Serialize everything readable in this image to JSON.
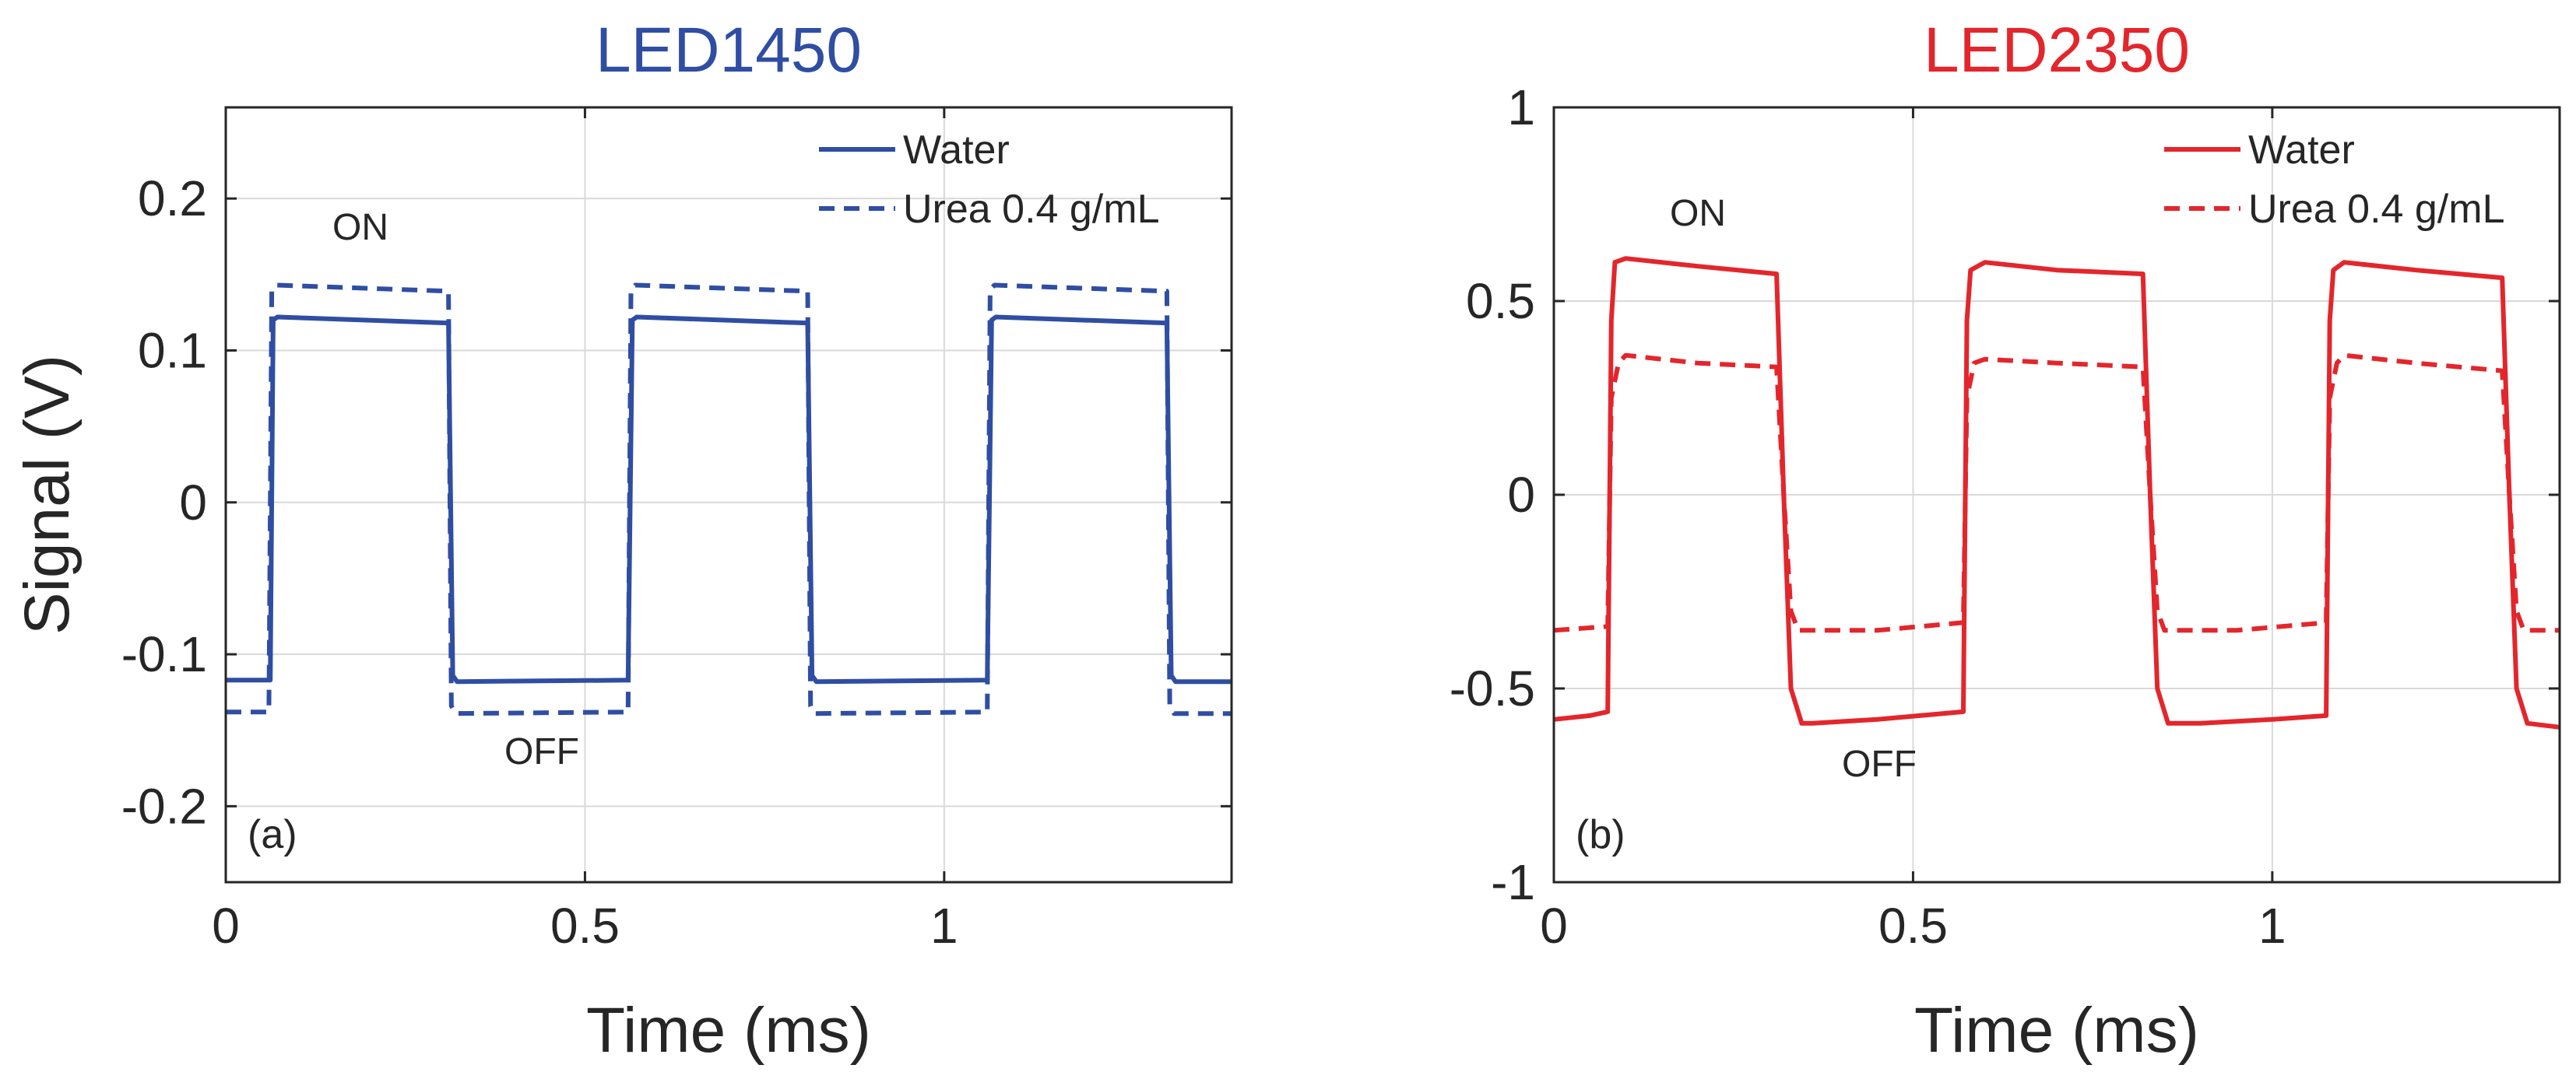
{
  "chart_data": [
    {
      "type": "line",
      "panel_label": "(a)",
      "title": "LED1450",
      "title_color": "#2f4ea3",
      "xlabel": "Time (ms)",
      "ylabel": "Signal (V)",
      "xlim": [
        0,
        1.4
      ],
      "ylim": [
        -0.25,
        0.26
      ],
      "xticks": [
        0,
        0.5,
        1
      ],
      "xtick_labels": [
        "0",
        "0.5",
        "1"
      ],
      "yticks": [
        -0.2,
        -0.1,
        0,
        0.1,
        0.2
      ],
      "ytick_labels": [
        "-0.2",
        "-0.1",
        "0",
        "0.1",
        "0.2"
      ],
      "grid": true,
      "legend_position": "top-right",
      "annotations": [
        {
          "text": "ON",
          "x": 0.19,
          "y": 0.175
        },
        {
          "text": "OFF",
          "x": 0.44,
          "y": -0.17
        }
      ],
      "series": [
        {
          "name": "Water",
          "style": "solid",
          "color": "#2f4ea3",
          "x": [
            0,
            0.062,
            0.066,
            0.072,
            0.31,
            0.316,
            0.322,
            0.56,
            0.566,
            0.572,
            0.81,
            0.816,
            0.822,
            1.06,
            1.066,
            1.072,
            1.31,
            1.316,
            1.322,
            1.4
          ],
          "y": [
            -0.117,
            -0.117,
            0.12,
            0.122,
            0.118,
            -0.114,
            -0.118,
            -0.117,
            0.12,
            0.122,
            0.118,
            -0.114,
            -0.118,
            -0.117,
            0.12,
            0.122,
            0.118,
            -0.114,
            -0.118,
            -0.118
          ]
        },
        {
          "name": "Urea 0.4 g/mL",
          "style": "dashed",
          "color": "#2f4ea3",
          "x": [
            0,
            0.06,
            0.064,
            0.07,
            0.31,
            0.314,
            0.32,
            0.56,
            0.564,
            0.57,
            0.81,
            0.814,
            0.82,
            1.06,
            1.064,
            1.07,
            1.31,
            1.314,
            1.32,
            1.4
          ],
          "y": [
            -0.138,
            -0.138,
            0.14,
            0.143,
            0.139,
            -0.134,
            -0.139,
            -0.138,
            0.14,
            0.143,
            0.139,
            -0.134,
            -0.139,
            -0.138,
            0.14,
            0.143,
            0.139,
            -0.134,
            -0.139,
            -0.139
          ]
        }
      ]
    },
    {
      "type": "line",
      "panel_label": "(b)",
      "title": "LED2350",
      "title_color": "#e3262c",
      "xlabel": "Time (ms)",
      "ylabel": "",
      "xlim": [
        0,
        1.4
      ],
      "ylim": [
        -1,
        1
      ],
      "xticks": [
        0,
        0.5,
        1
      ],
      "xtick_labels": [
        "0",
        "0.5",
        "1"
      ],
      "yticks": [
        -1,
        -0.5,
        0,
        0.5,
        1
      ],
      "ytick_labels": [
        "-1",
        "-0.5",
        "0",
        "0.5",
        "1"
      ],
      "grid": true,
      "legend_position": "top-right",
      "annotations": [
        {
          "text": "ON",
          "x": 0.2,
          "y": 0.72
        },
        {
          "text": "OFF",
          "x": 0.47,
          "y": -0.72
        }
      ],
      "series": [
        {
          "name": "Water",
          "style": "solid",
          "color": "#e3262c",
          "x": [
            0,
            0.05,
            0.075,
            0.08,
            0.085,
            0.1,
            0.2,
            0.31,
            0.32,
            0.33,
            0.345,
            0.36,
            0.45,
            0.57,
            0.575,
            0.58,
            0.6,
            0.7,
            0.82,
            0.83,
            0.84,
            0.855,
            0.9,
            1.0,
            1.075,
            1.08,
            1.085,
            1.1,
            1.2,
            1.32,
            1.33,
            1.34,
            1.355,
            1.4
          ],
          "y": [
            -0.58,
            -0.57,
            -0.56,
            0.45,
            0.6,
            0.61,
            0.59,
            0.57,
            0.0,
            -0.5,
            -0.59,
            -0.59,
            -0.58,
            -0.56,
            0.45,
            0.58,
            0.6,
            0.58,
            0.57,
            0.0,
            -0.5,
            -0.59,
            -0.59,
            -0.58,
            -0.57,
            0.45,
            0.58,
            0.6,
            0.58,
            0.56,
            0.0,
            -0.5,
            -0.59,
            -0.6
          ]
        },
        {
          "name": "Urea 0.4 g/mL",
          "style": "dashed",
          "color": "#e3262c",
          "x": [
            0,
            0.075,
            0.08,
            0.09,
            0.1,
            0.2,
            0.31,
            0.32,
            0.33,
            0.34,
            0.45,
            0.57,
            0.575,
            0.585,
            0.6,
            0.7,
            0.82,
            0.83,
            0.84,
            0.85,
            0.95,
            1.075,
            1.08,
            1.09,
            1.1,
            1.2,
            1.32,
            1.33,
            1.34,
            1.35,
            1.4
          ],
          "y": [
            -0.35,
            -0.34,
            0.25,
            0.34,
            0.36,
            0.34,
            0.33,
            0.0,
            -0.3,
            -0.35,
            -0.35,
            -0.33,
            0.25,
            0.34,
            0.35,
            0.34,
            0.33,
            0.0,
            -0.3,
            -0.35,
            -0.35,
            -0.33,
            0.25,
            0.34,
            0.36,
            0.34,
            0.32,
            0.0,
            -0.3,
            -0.35,
            -0.35
          ]
        }
      ]
    }
  ]
}
